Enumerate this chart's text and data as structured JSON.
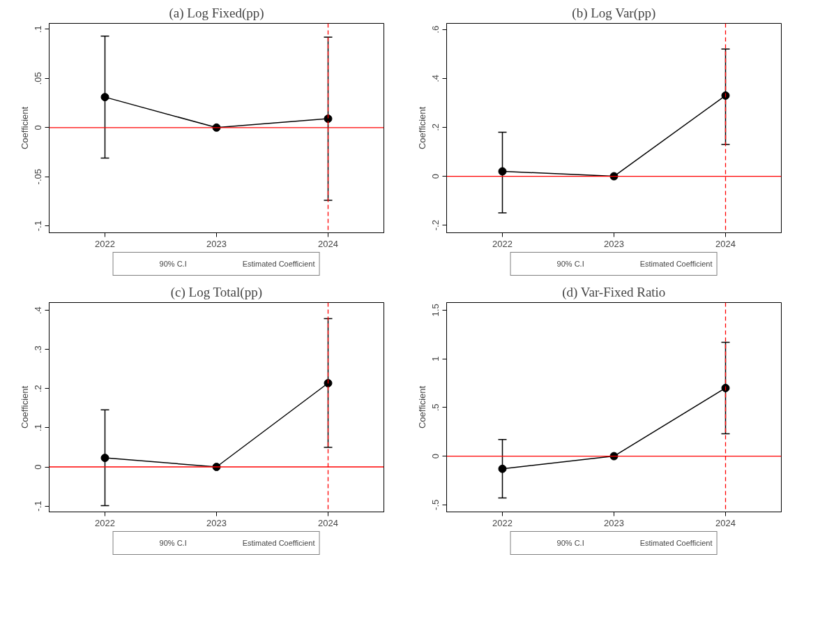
{
  "chart_data": [
    {
      "type": "line",
      "title": "(a) Log Fixed(pp)",
      "ylabel": "Coefficient",
      "x": [
        2022,
        2023,
        2024
      ],
      "xlim": [
        2021.5,
        2024.5
      ],
      "xticks": [
        2022,
        2023,
        2024
      ],
      "ylim": [
        -0.107,
        0.106
      ],
      "yticks": [
        {
          "value": -0.1,
          "label": "-.1"
        },
        {
          "value": -0.05,
          "label": "-.05"
        },
        0,
        {
          "value": 0.05,
          "label": ".05"
        },
        {
          "value": 0.1,
          "label": ".1"
        }
      ],
      "marker": "circle",
      "legend": "bottom",
      "grid": false,
      "annotations": [
        "90% C.I"
      ],
      "series": [
        {
          "name": "Estimated Coefficient",
          "color": "#000000",
          "values": [
            0.031,
            0,
            0.009
          ],
          "errors": [
            [
              -0.031,
              0.093
            ],
            null,
            [
              -0.074,
              0.092
            ]
          ]
        }
      ],
      "ref_lines": [
        {
          "axis": "y",
          "value": 0,
          "color": "#ff0000",
          "line_style": "solid"
        },
        {
          "axis": "x",
          "value": 2024,
          "color": "#ff0000",
          "line_style": "dashed"
        }
      ]
    },
    {
      "type": "line",
      "title": "(b) Log Var(pp)",
      "ylabel": "Coefficient",
      "x": [
        2022,
        2023,
        2024
      ],
      "xlim": [
        2021.5,
        2024.5
      ],
      "xticks": [
        2022,
        2023,
        2024
      ],
      "ylim": [
        -0.231,
        0.625
      ],
      "yticks": [
        {
          "value": -0.2,
          "label": "-.2"
        },
        0,
        {
          "value": 0.2,
          "label": ".2"
        },
        {
          "value": 0.4,
          "label": ".4"
        },
        {
          "value": 0.6,
          "label": ".6"
        }
      ],
      "marker": "circle",
      "legend": "bottom",
      "grid": false,
      "annotations": [
        "90% C.I"
      ],
      "series": [
        {
          "name": "Estimated Coefficient",
          "color": "#000000",
          "values": [
            0.02,
            0,
            0.33
          ],
          "errors": [
            [
              -0.15,
              0.18
            ],
            null,
            [
              0.13,
              0.52
            ]
          ]
        }
      ],
      "ref_lines": [
        {
          "axis": "y",
          "value": 0,
          "color": "#ff0000",
          "line_style": "solid"
        },
        {
          "axis": "x",
          "value": 2024,
          "color": "#ff0000",
          "line_style": "dashed"
        }
      ]
    },
    {
      "type": "line",
      "title": "(c) Log Total(pp)",
      "ylabel": "Coefficient",
      "x": [
        2022,
        2023,
        2024
      ],
      "xlim": [
        2021.5,
        2024.5
      ],
      "xticks": [
        2022,
        2023,
        2024
      ],
      "ylim": [
        -0.115,
        0.42
      ],
      "yticks": [
        {
          "value": -0.1,
          "label": "-.1"
        },
        0,
        {
          "value": 0.1,
          "label": ".1"
        },
        {
          "value": 0.2,
          "label": ".2"
        },
        {
          "value": 0.3,
          "label": ".3"
        },
        {
          "value": 0.4,
          "label": ".4"
        }
      ],
      "marker": "circle",
      "legend": "bottom",
      "grid": false,
      "annotations": [
        "90% C.I"
      ],
      "series": [
        {
          "name": "Estimated Coefficient",
          "color": "#000000",
          "values": [
            0.023,
            0,
            0.214
          ],
          "errors": [
            [
              -0.099,
              0.146
            ],
            null,
            [
              0.05,
              0.379
            ]
          ]
        }
      ],
      "ref_lines": [
        {
          "axis": "y",
          "value": 0,
          "color": "#ff0000",
          "line_style": "solid"
        },
        {
          "axis": "x",
          "value": 2024,
          "color": "#ff0000",
          "line_style": "dashed"
        }
      ]
    },
    {
      "type": "line",
      "title": "(d) Var-Fixed Ratio",
      "ylabel": "Coefficient",
      "x": [
        2022,
        2023,
        2024
      ],
      "xlim": [
        2021.5,
        2024.5
      ],
      "xticks": [
        2022,
        2023,
        2024
      ],
      "ylim": [
        -0.573,
        1.578
      ],
      "yticks": [
        {
          "value": -0.5,
          "label": "-.5"
        },
        0,
        {
          "value": 0.5,
          "label": ".5"
        },
        1,
        {
          "value": 1.5,
          "label": "1.5"
        }
      ],
      "marker": "circle",
      "legend": "bottom",
      "grid": false,
      "annotations": [
        "90% C.I"
      ],
      "series": [
        {
          "name": "Estimated Coefficient",
          "color": "#000000",
          "values": [
            -0.13,
            0,
            0.7
          ],
          "errors": [
            [
              -0.43,
              0.17
            ],
            null,
            [
              0.23,
              1.17
            ]
          ]
        }
      ],
      "ref_lines": [
        {
          "axis": "y",
          "value": 0,
          "color": "#ff0000",
          "line_style": "solid"
        },
        {
          "axis": "x",
          "value": 2024,
          "color": "#ff0000",
          "line_style": "dashed"
        }
      ]
    }
  ]
}
